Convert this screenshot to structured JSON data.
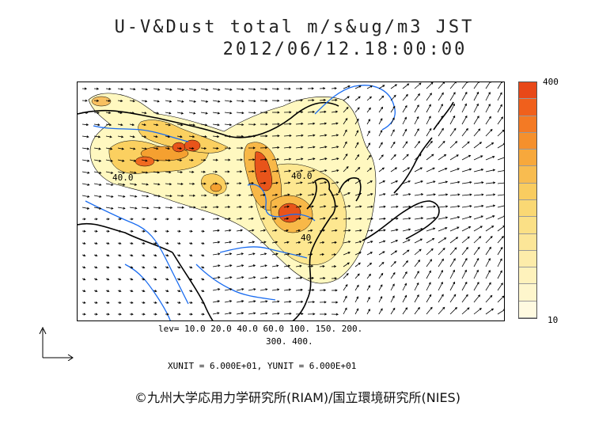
{
  "title": {
    "line1": "U-V&Dust total m/s&ug/m3 JST",
    "line2": "2012/06/12.18:00:00"
  },
  "colorbar": {
    "max_label": "400",
    "min_label": "10",
    "colors": [
      "#e84818",
      "#f0601c",
      "#f47a24",
      "#f5902c",
      "#f7a83c",
      "#f8bc50",
      "#f9cc60",
      "#fad874",
      "#fbe086",
      "#fce698",
      "#fdecaa",
      "#fef2bc",
      "#fef6cc",
      "#fffae0"
    ]
  },
  "contour_labels": {
    "west": "40.0",
    "center": "40.0",
    "south": "40"
  },
  "levels": {
    "line1": "lev= 10.0 20.0 40.0 60.0 100. 150. 200.",
    "line2": "300. 400."
  },
  "units": "XUNIT = 6.000E+01, YUNIT = 6.000E+01",
  "copyright": "©九州大学応用力学研究所(RIAM)/国立環境研究所(NIES)",
  "map_colors": {
    "coast": "#000000",
    "river": "#1a6cf0",
    "dust_low": "#fff6b0",
    "dust_mid": "#fde080",
    "dust_high": "#f5a030",
    "dust_peak": "#e8541a"
  }
}
